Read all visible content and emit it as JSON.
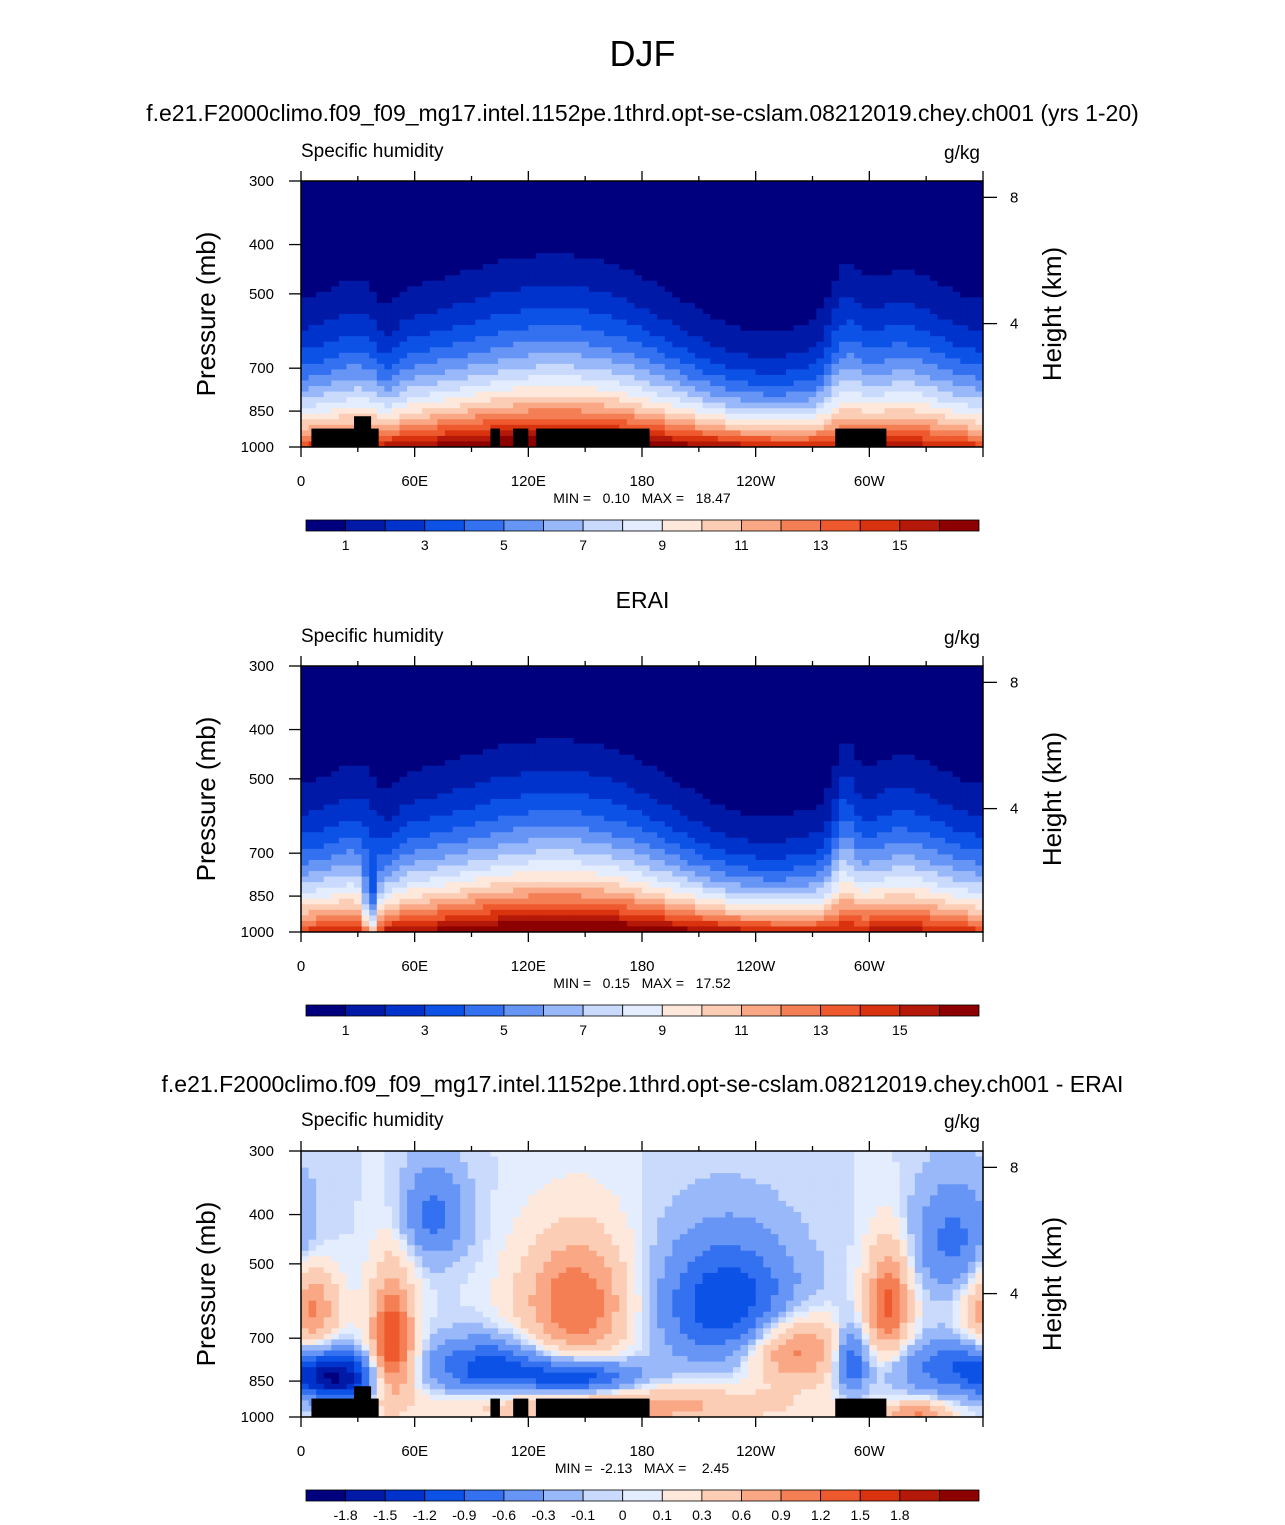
{
  "season": "DJF",
  "chart_data": [
    {
      "type": "heatmap",
      "panel_title": "f.e21.F2000climo.f09_f09_mg17.intel.1152pe.1thrd.opt-se-cslam.08212019.chey.ch001 (yrs 1-20)",
      "variable": "Specific humidity",
      "units": "g/kg",
      "ylabel": "Pressure (mb)",
      "ylabel_right": "Height (km)",
      "x_ticks": [
        "0",
        "60E",
        "120E",
        "180",
        "120W",
        "60W"
      ],
      "x_range": [
        0,
        360
      ],
      "y_ticks": [
        "300",
        "400",
        "500",
        "700",
        "850",
        "1000"
      ],
      "y_range_mb": [
        1000,
        300
      ],
      "y_right_ticks": [
        "8",
        "4"
      ],
      "stats_text": "MIN =   0.10   MAX =   18.47",
      "min": 0.1,
      "max": 18.47,
      "colorbar_labels": [
        "1",
        "3",
        "5",
        "7",
        "9",
        "11",
        "13",
        "15"
      ],
      "colorbar_levels": [
        0,
        1,
        2,
        3,
        4,
        5,
        6,
        7,
        8,
        9,
        10,
        11,
        12,
        13,
        14,
        15,
        16
      ],
      "colormap": [
        "#00007f",
        "#0019a6",
        "#0033cc",
        "#0d52e6",
        "#3371f0",
        "#6695f5",
        "#99b8fa",
        "#c9dafc",
        "#e3edfd",
        "#fde8db",
        "#fccdb5",
        "#f9a784",
        "#f57f55",
        "#ee5a2d",
        "#d8320f",
        "#b41808",
        "#8c0000"
      ],
      "has_terrain_mask": true
    },
    {
      "type": "heatmap",
      "panel_title": "ERAI",
      "variable": "Specific humidity",
      "units": "g/kg",
      "ylabel": "Pressure (mb)",
      "ylabel_right": "Height (km)",
      "x_ticks": [
        "0",
        "60E",
        "120E",
        "180",
        "120W",
        "60W"
      ],
      "x_range": [
        0,
        360
      ],
      "y_ticks": [
        "300",
        "400",
        "500",
        "700",
        "850",
        "1000"
      ],
      "y_range_mb": [
        1000,
        300
      ],
      "y_right_ticks": [
        "8",
        "4"
      ],
      "stats_text": "MIN =   0.15   MAX =   17.52",
      "min": 0.15,
      "max": 17.52,
      "colorbar_labels": [
        "1",
        "3",
        "5",
        "7",
        "9",
        "11",
        "13",
        "15"
      ],
      "colorbar_levels": [
        0,
        1,
        2,
        3,
        4,
        5,
        6,
        7,
        8,
        9,
        10,
        11,
        12,
        13,
        14,
        15,
        16
      ],
      "colormap": [
        "#00007f",
        "#0019a6",
        "#0033cc",
        "#0d52e6",
        "#3371f0",
        "#6695f5",
        "#99b8fa",
        "#c9dafc",
        "#e3edfd",
        "#fde8db",
        "#fccdb5",
        "#f9a784",
        "#f57f55",
        "#ee5a2d",
        "#d8320f",
        "#b41808",
        "#8c0000"
      ],
      "has_terrain_mask": false
    },
    {
      "type": "heatmap",
      "panel_title": "f.e21.F2000climo.f09_f09_mg17.intel.1152pe.1thrd.opt-se-cslam.08212019.chey.ch001 - ERAI",
      "variable": "Specific humidity",
      "units": "g/kg",
      "ylabel": "Pressure (mb)",
      "ylabel_right": "Height (km)",
      "x_ticks": [
        "0",
        "60E",
        "120E",
        "180",
        "120W",
        "60W"
      ],
      "x_range": [
        0,
        360
      ],
      "y_ticks": [
        "300",
        "400",
        "500",
        "700",
        "850",
        "1000"
      ],
      "y_range_mb": [
        1000,
        300
      ],
      "y_right_ticks": [
        "8",
        "4"
      ],
      "stats_text": "MIN =  -2.13   MAX =    2.45",
      "min": -2.13,
      "max": 2.45,
      "colorbar_labels": [
        "-1.8",
        "-1.5",
        "-1.2",
        "-0.9",
        "-0.6",
        "-0.3",
        "-0.1",
        "0",
        "0.1",
        "0.3",
        "0.6",
        "0.9",
        "1.2",
        "1.5",
        "1.8"
      ],
      "colorbar_levels": [
        -2.0,
        -1.8,
        -1.5,
        -1.2,
        -0.9,
        -0.6,
        -0.3,
        -0.1,
        0,
        0.1,
        0.3,
        0.6,
        0.9,
        1.2,
        1.5,
        1.8,
        2.0
      ],
      "colormap": [
        "#00007f",
        "#0019a6",
        "#0033cc",
        "#0d52e6",
        "#3371f0",
        "#6695f5",
        "#99b8fa",
        "#c9dafc",
        "#e3edfd",
        "#fde8db",
        "#fccdb5",
        "#f9a784",
        "#f57f55",
        "#ee5a2d",
        "#d8320f",
        "#b41808",
        "#8c0000"
      ],
      "has_terrain_mask": true
    }
  ]
}
